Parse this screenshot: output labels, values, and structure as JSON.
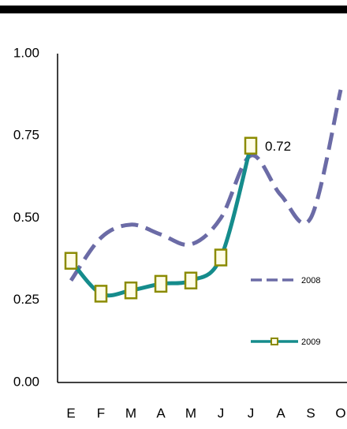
{
  "chart_data": {
    "type": "line",
    "categories": [
      "E",
      "F",
      "M",
      "A",
      "M",
      "J",
      "J",
      "A",
      "S",
      "O"
    ],
    "series": [
      {
        "name": "2008",
        "color": "#6b6ba6",
        "dashed": true,
        "values": [
          0.31,
          0.44,
          0.48,
          0.45,
          0.42,
          0.5,
          0.69,
          0.57,
          0.5,
          0.89
        ]
      },
      {
        "name": "2009",
        "color": "#158c8c",
        "marker_color": "#8b8b00",
        "values": [
          0.37,
          0.27,
          0.28,
          0.3,
          0.31,
          0.38,
          0.72,
          null,
          null,
          null
        ],
        "value_labels": [
          null,
          null,
          null,
          null,
          null,
          null,
          "0.72",
          null,
          null,
          null
        ]
      }
    ],
    "ylim": [
      0,
      1
    ],
    "yticks": [
      {
        "value": 0,
        "label": "0.00"
      },
      {
        "value": 0.25,
        "label": "0.25"
      },
      {
        "value": 0.5,
        "label": "0.50"
      },
      {
        "value": 0.75,
        "label": "0.75"
      },
      {
        "value": 1,
        "label": "1.00"
      }
    ],
    "grid": false
  }
}
